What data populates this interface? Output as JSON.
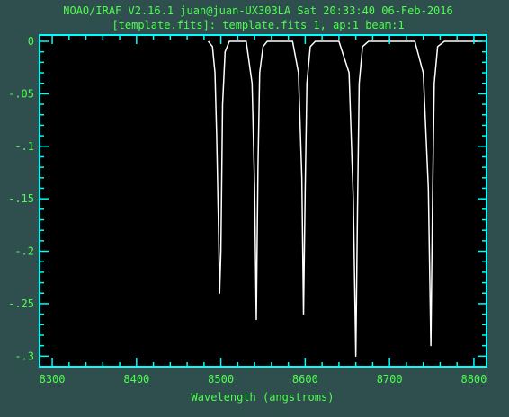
{
  "window": {
    "title_line1": "NOAO/IRAF V2.16.1 juan@juan-UX303LA Sat 20:33:40 06-Feb-2016",
    "title_line2": "[template.fits]: template.fits 1, ap:1 beam:1"
  },
  "colors": {
    "background": "#2f4f4f",
    "plot_area": "#000000",
    "frame": "#00ffff",
    "text": "#4cff4c",
    "spectrum": "#ffffff"
  },
  "chart_data": {
    "type": "line",
    "xlabel": "Wavelength (angstroms)",
    "ylabel": "",
    "xlim": [
      8285,
      8815
    ],
    "ylim": [
      -0.31,
      0.006
    ],
    "x_ticks": [
      8300,
      8400,
      8500,
      8600,
      8700,
      8800
    ],
    "x_tick_labels": [
      "8300",
      "8400",
      "8500",
      "8600",
      "8700",
      "8800"
    ],
    "y_ticks": [
      0,
      -0.05,
      -0.1,
      -0.15,
      -0.2,
      -0.25,
      -0.3
    ],
    "y_tick_labels": [
      "0",
      "-.05",
      "-.1",
      "-.15",
      "-.2",
      "-.25",
      "-.3"
    ],
    "grid": false,
    "series": [
      {
        "x": [
          8485,
          8490,
          8493,
          8495,
          8497,
          8498.5,
          8500,
          8502,
          8505,
          8510,
          8530,
          8537,
          8540,
          8542,
          8544,
          8546,
          8550,
          8555,
          8585,
          8592,
          8596,
          8598,
          8600,
          8602,
          8606,
          8612,
          8640,
          8652,
          8657,
          8660,
          8662,
          8664,
          8668,
          8675,
          8730,
          8740,
          8746,
          8749,
          8751,
          8753,
          8757,
          8765,
          8810
        ],
        "y": [
          0,
          -0.005,
          -0.03,
          -0.09,
          -0.17,
          -0.24,
          -0.2,
          -0.06,
          -0.01,
          0,
          0,
          -0.04,
          -0.14,
          -0.265,
          -0.12,
          -0.03,
          -0.005,
          0,
          0,
          -0.03,
          -0.13,
          -0.26,
          -0.14,
          -0.04,
          -0.005,
          0,
          0,
          -0.03,
          -0.15,
          -0.3,
          -0.16,
          -0.04,
          -0.005,
          0,
          0,
          -0.03,
          -0.14,
          -0.29,
          -0.15,
          -0.04,
          -0.005,
          0,
          0
        ]
      }
    ]
  }
}
